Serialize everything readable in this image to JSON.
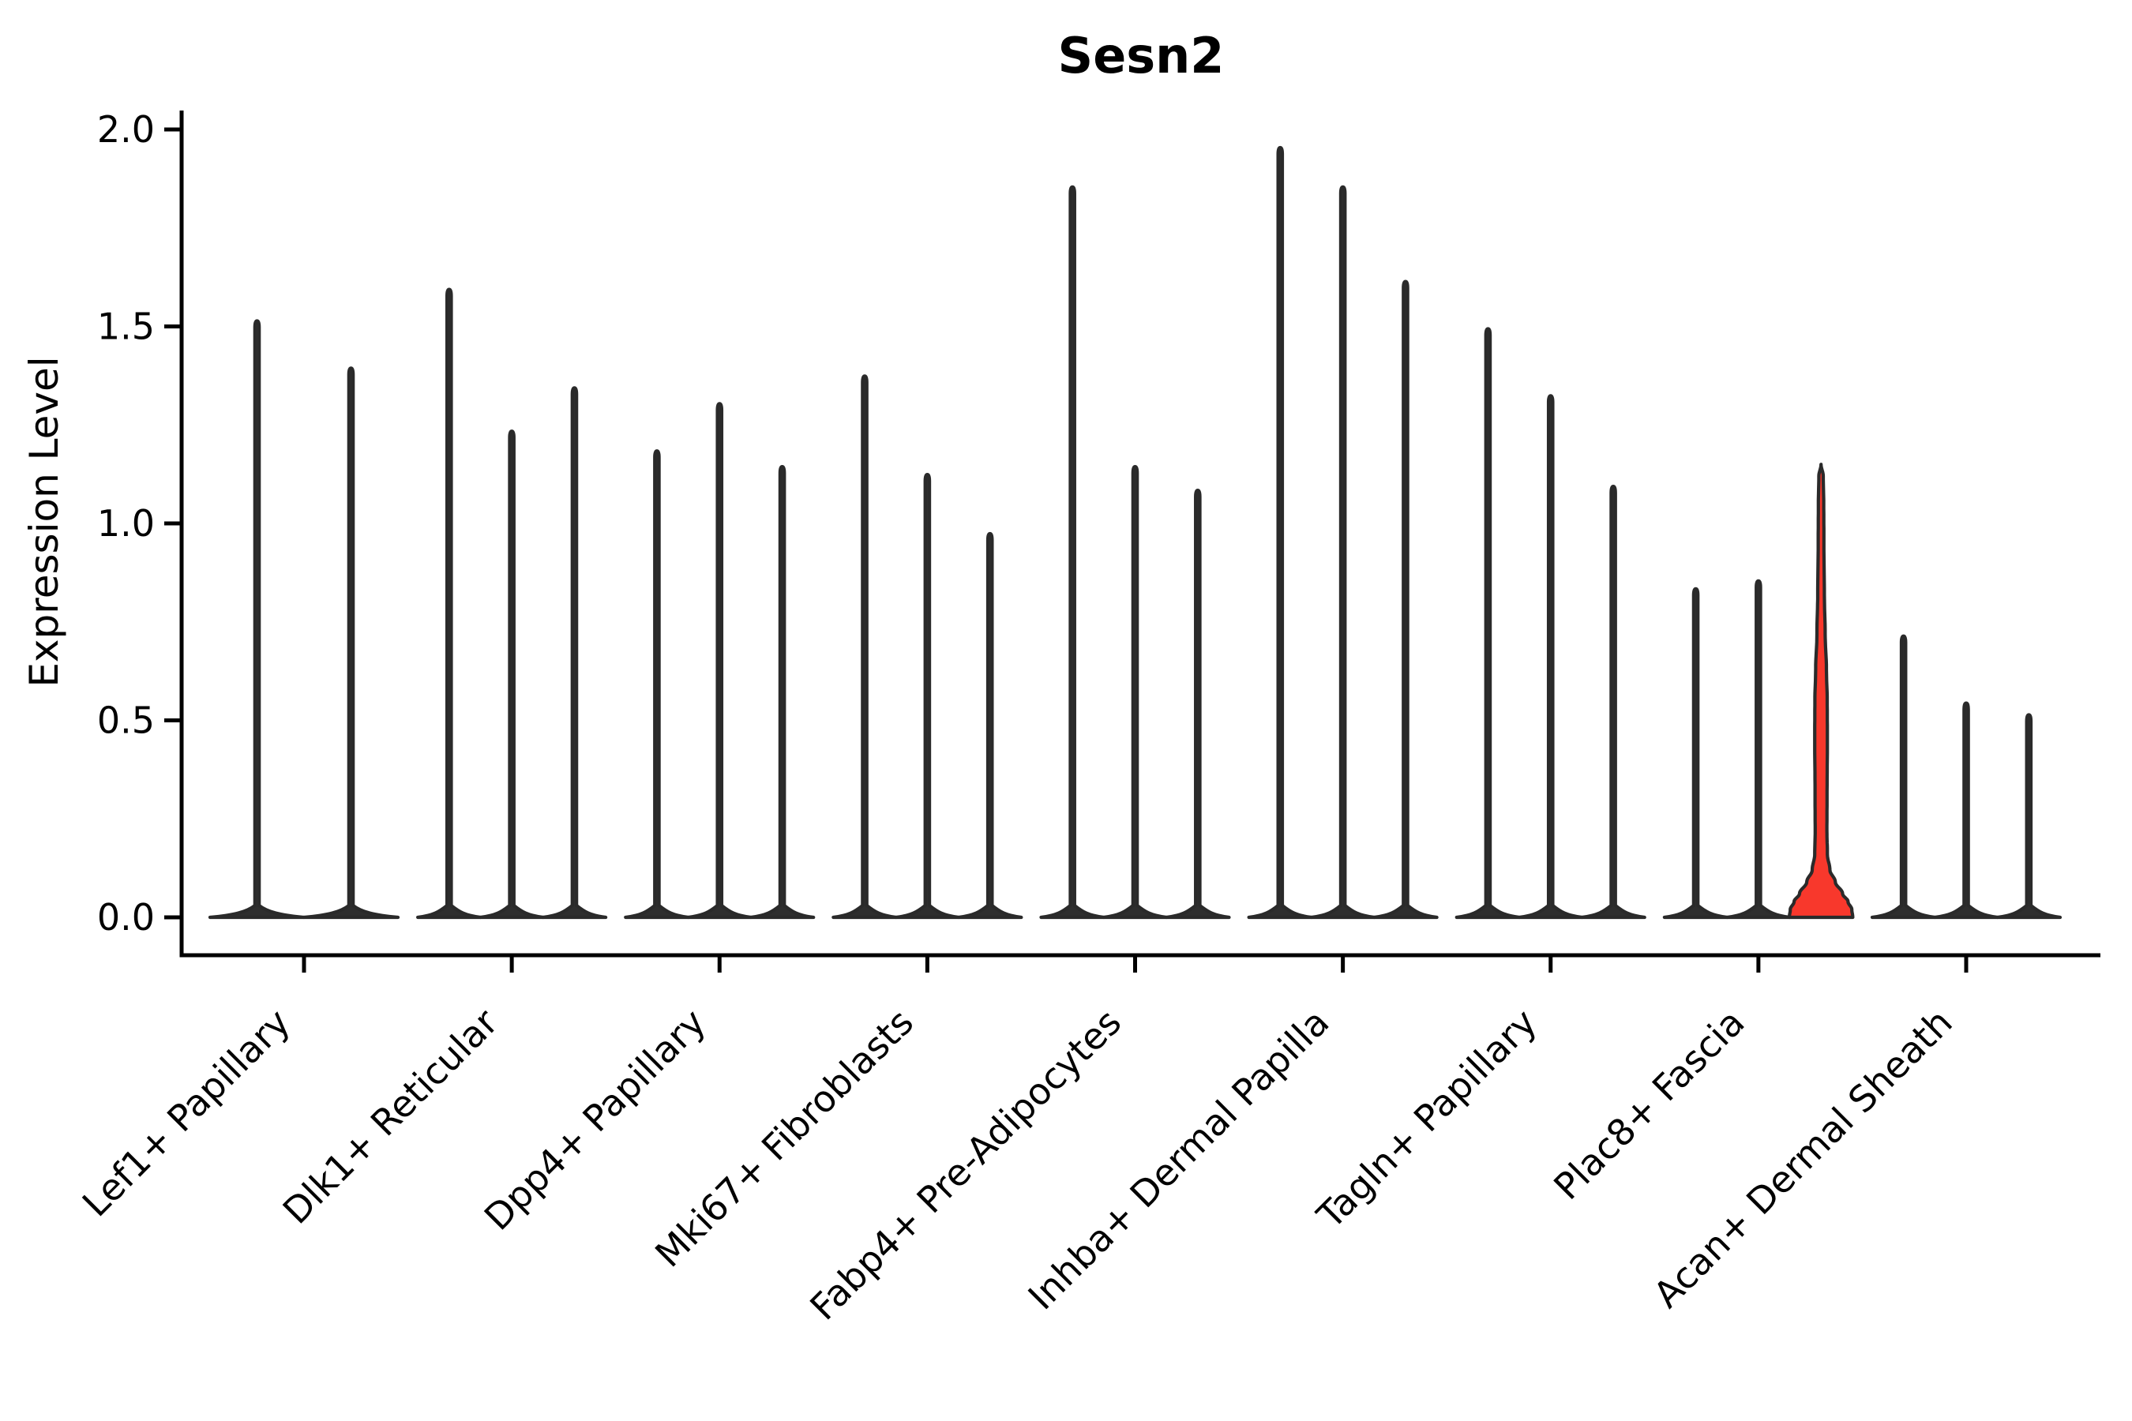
{
  "title": "Sesn2",
  "axes": {
    "ylabel": "Expression Level",
    "ytick_labels": [
      "0.0",
      "0.5",
      "1.0",
      "1.5",
      "2.0"
    ]
  },
  "chart_data": {
    "type": "violin",
    "title": "Sesn2",
    "xlabel": "",
    "ylabel": "Expression Level",
    "ylim": [
      0,
      2.05
    ],
    "yticks": [
      0.0,
      0.5,
      1.0,
      1.5,
      2.0
    ],
    "grid": false,
    "legend": null,
    "categories": [
      "Lef1+ Papillary",
      "Dlk1+ Reticular",
      "Dpp4+ Papillary",
      "Mki67+ Fibroblasts",
      "Fabp4+ Pre-Adipocytes",
      "Inhba+ Dermal Papilla",
      "Tagln+ Papillary",
      "Plac8+ Fascia",
      "Acan+ Dermal Sheath"
    ],
    "series": [
      {
        "category": "Lef1+ Papillary",
        "violins": [
          {
            "max": 1.51
          },
          {
            "max": 1.39
          }
        ]
      },
      {
        "category": "Dlk1+ Reticular",
        "violins": [
          {
            "max": 1.59
          },
          {
            "max": 1.23
          },
          {
            "max": 1.34
          }
        ]
      },
      {
        "category": "Dpp4+ Papillary",
        "violins": [
          {
            "max": 1.18
          },
          {
            "max": 1.3
          },
          {
            "max": 1.14
          }
        ]
      },
      {
        "category": "Mki67+ Fibroblasts",
        "violins": [
          {
            "max": 1.37
          },
          {
            "max": 1.12
          },
          {
            "max": 0.97
          }
        ]
      },
      {
        "category": "Fabp4+ Pre-Adipocytes",
        "violins": [
          {
            "max": 1.85
          },
          {
            "max": 1.14
          },
          {
            "max": 1.08
          }
        ]
      },
      {
        "category": "Inhba+ Dermal Papilla",
        "violins": [
          {
            "max": 1.95
          },
          {
            "max": 1.85
          },
          {
            "max": 1.61
          }
        ]
      },
      {
        "category": "Tagln+ Papillary",
        "violins": [
          {
            "max": 1.49
          },
          {
            "max": 1.32
          },
          {
            "max": 1.09
          }
        ]
      },
      {
        "category": "Plac8+ Fascia",
        "violins": [
          {
            "max": 0.83
          },
          {
            "max": 0.85
          },
          {
            "max": 1.15,
            "highlight": true,
            "profile": [
              [
                0,
                1.0
              ],
              [
                0.02,
                0.97
              ],
              [
                0.04,
                0.85
              ],
              [
                0.06,
                0.68
              ],
              [
                0.09,
                0.45
              ],
              [
                0.12,
                0.28
              ],
              [
                0.16,
                0.2
              ],
              [
                0.22,
                0.185
              ],
              [
                0.32,
                0.19
              ],
              [
                0.45,
                0.2
              ],
              [
                0.55,
                0.195
              ],
              [
                0.63,
                0.17
              ],
              [
                0.72,
                0.13
              ],
              [
                0.82,
                0.105
              ],
              [
                0.95,
                0.09
              ],
              [
                1.05,
                0.085
              ],
              [
                1.12,
                0.07
              ],
              [
                1.15,
                0.0
              ]
            ]
          }
        ]
      },
      {
        "category": "Acan+ Dermal Sheath",
        "violins": [
          {
            "max": 0.71
          },
          {
            "max": 0.54
          },
          {
            "max": 0.51
          }
        ]
      }
    ],
    "colors": {
      "highlight_fill": "#f8382c",
      "violin_fill": "#2e2e2e",
      "violin_stroke": "#2a2a2a",
      "axis": "#000000",
      "text": "#000000",
      "background": "#ffffff"
    }
  }
}
